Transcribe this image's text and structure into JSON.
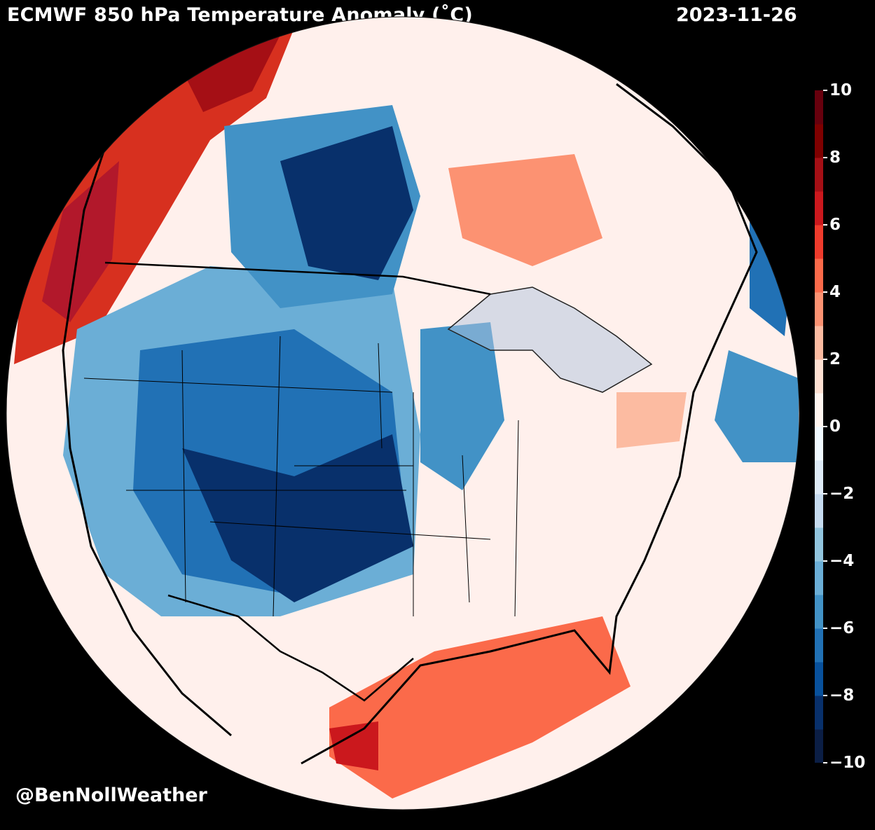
{
  "header": {
    "title": "ECMWF 850 hPa Temperature Anomaly (˚C)",
    "date": "2023-11-26"
  },
  "footer": {
    "credit": "@BenNollWeather"
  },
  "colorbar": {
    "min": -10,
    "max": 10,
    "ticks": [
      "10",
      "8",
      "6",
      "4",
      "2",
      "0",
      "−2",
      "−4",
      "−6",
      "−8",
      "−10"
    ],
    "colors": [
      "#0b1e45",
      "#08306b",
      "#08519c",
      "#2171b5",
      "#4292c6",
      "#6baed6",
      "#92c5de",
      "#c6dbef",
      "#deebf7",
      "#f0f9ff",
      "#fff5f0",
      "#fee0d2",
      "#fcbba1",
      "#fc9272",
      "#fb6a4a",
      "#ef3b2c",
      "#cb181d",
      "#a50f15",
      "#7f0000",
      "#67000d"
    ]
  }
}
